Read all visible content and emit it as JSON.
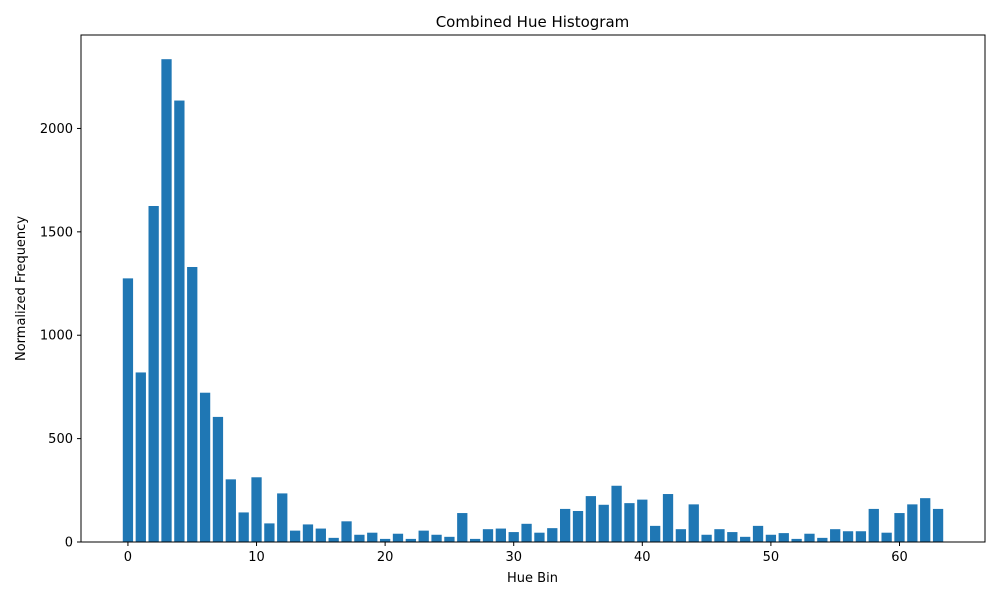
{
  "chart_data": {
    "type": "bar",
    "title": "Combined Hue Histogram",
    "xlabel": "Hue Bin",
    "ylabel": "Normalized Frequency",
    "x": [
      0,
      1,
      2,
      3,
      4,
      5,
      6,
      7,
      8,
      9,
      10,
      11,
      12,
      13,
      14,
      15,
      16,
      17,
      18,
      19,
      20,
      21,
      22,
      23,
      24,
      25,
      26,
      27,
      28,
      29,
      30,
      31,
      32,
      33,
      34,
      35,
      36,
      37,
      38,
      39,
      40,
      41,
      42,
      43,
      44,
      45,
      46,
      47,
      48,
      49,
      50,
      51,
      52,
      53,
      54,
      55,
      56,
      57,
      58,
      59,
      60,
      61,
      62,
      63
    ],
    "values": [
      1275,
      820,
      1625,
      2335,
      2135,
      1330,
      722,
      605,
      303,
      143,
      313,
      90,
      235,
      55,
      85,
      65,
      20,
      100,
      35,
      45,
      15,
      40,
      15,
      55,
      35,
      25,
      140,
      15,
      62,
      65,
      48,
      88,
      45,
      67,
      160,
      150,
      222,
      180,
      272,
      188,
      205,
      78,
      232,
      62,
      182,
      35,
      62,
      48,
      25,
      78,
      35,
      43,
      15,
      40,
      20,
      62,
      52,
      52,
      160,
      45,
      140,
      182,
      212,
      160
    ],
    "xlim": [
      -3.65,
      66.65
    ],
    "ylim": [
      0,
      2452
    ],
    "xticks": [
      "0",
      "10",
      "20",
      "30",
      "40",
      "50",
      "60"
    ],
    "yticks": [
      "0",
      "500",
      "1000",
      "1500",
      "2000"
    ],
    "bar_color": "#1f77b4",
    "grid": false,
    "legend": "none"
  }
}
